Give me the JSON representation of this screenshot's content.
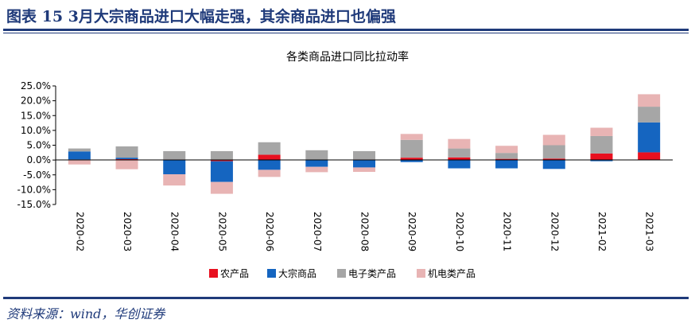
{
  "header": {
    "title": "图表 15   3月大宗商品进口大幅走强，其余商品进口也偏强"
  },
  "source": "资料来源：wind，华创证券",
  "colors": {
    "brand": "#1f3a7a",
    "农产品": "#e8101f",
    "大宗商品": "#1565c0",
    "电子类产品": "#a6a6a6",
    "机电类产品": "#e8b4b4"
  },
  "chart_data": {
    "type": "bar",
    "stacked": true,
    "title": "各类商品进口同比拉动率",
    "xlabel": "",
    "ylabel": "",
    "ylim": [
      -15,
      25
    ],
    "yticks": [
      "25.0%",
      "20.0%",
      "15.0%",
      "10.0%",
      "5.0%",
      "0.0%",
      "-5.0%",
      "-10.0%",
      "-15.0%"
    ],
    "grid": false,
    "legend": "bottom",
    "categories": [
      "2020-02",
      "2020-03",
      "2020-04",
      "2020-05",
      "2020-06",
      "2020-07",
      "2020-08",
      "2020-09",
      "2020-10",
      "2020-11",
      "2020-12",
      "2021-02",
      "2021-03"
    ],
    "series": [
      {
        "name": "农产品",
        "color": "#e8101f",
        "values": [
          0.2,
          0.3,
          0.2,
          -0.4,
          1.8,
          0.1,
          0.2,
          0.8,
          0.9,
          0.4,
          0.5,
          2.2,
          2.6
        ]
      },
      {
        "name": "大宗商品",
        "color": "#1565c0",
        "values": [
          2.7,
          0.5,
          -4.8,
          -7.0,
          -3.3,
          -2.3,
          -2.5,
          -0.7,
          -2.8,
          -2.8,
          -3.0,
          -0.4,
          10.1
        ]
      },
      {
        "name": "电子类产品",
        "color": "#a6a6a6",
        "values": [
          1.0,
          3.8,
          2.8,
          3.0,
          4.2,
          3.2,
          2.8,
          6.0,
          3.0,
          2.0,
          4.5,
          5.9,
          5.3
        ]
      },
      {
        "name": "机电类产品",
        "color": "#e8b4b4",
        "values": [
          -1.5,
          -3.1,
          -3.8,
          -4.0,
          -2.4,
          -1.8,
          -1.5,
          2.0,
          3.2,
          2.4,
          3.5,
          2.8,
          4.2
        ]
      }
    ]
  }
}
